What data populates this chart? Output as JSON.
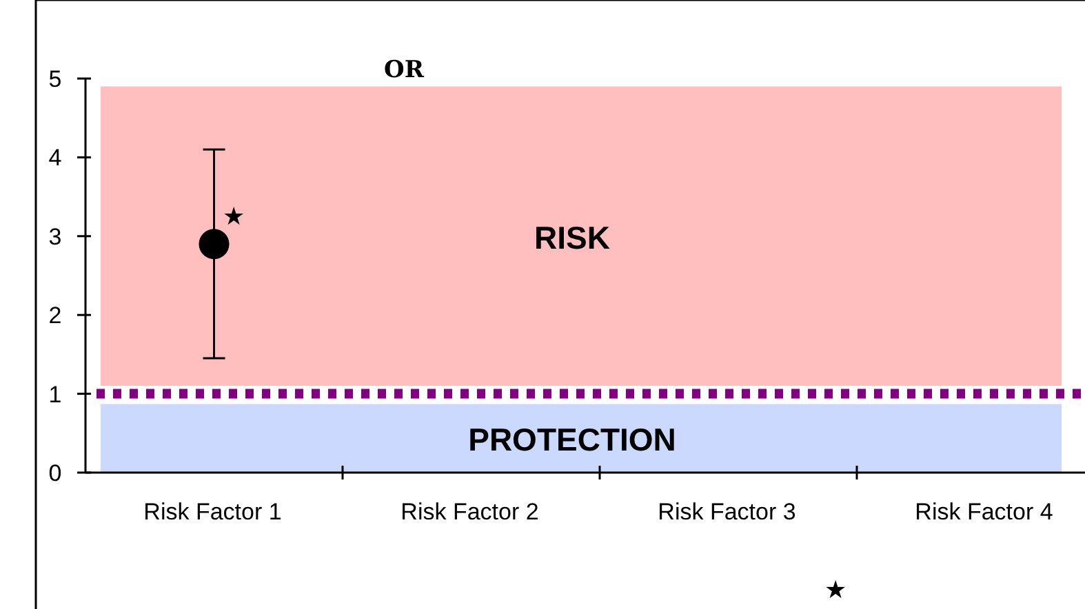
{
  "chart_data": {
    "type": "scatter",
    "title": "OR",
    "categories": [
      "Risk Factor 1",
      "Risk Factor 2",
      "Risk Factor 3",
      "Risk Factor 4"
    ],
    "series": [
      {
        "color": "#000000",
        "values": [
          2.9,
          null,
          null,
          null
        ],
        "errors": [
          [
            1.45,
            4.1
          ],
          null,
          null,
          null
        ]
      }
    ],
    "marker": "circle",
    "ylim": [
      0,
      5
    ],
    "yticks": [
      0,
      1,
      2,
      3,
      4,
      5
    ],
    "ref_lines": [
      {
        "axis": "y",
        "value": 1,
        "color": "#800080",
        "line_style": "dotted"
      }
    ],
    "bands": [
      {
        "axis": "y",
        "from": 1.1,
        "to": 4.9,
        "label": "RISK",
        "color": "#ffbfbf"
      },
      {
        "axis": "y",
        "from": 0,
        "to": 0.87,
        "label": "PROTECTION",
        "color": "#ccd9ff"
      }
    ],
    "annotations": [
      {
        "text": "★",
        "x": "Risk Factor 1",
        "y": 3.25
      },
      "★"
    ]
  }
}
